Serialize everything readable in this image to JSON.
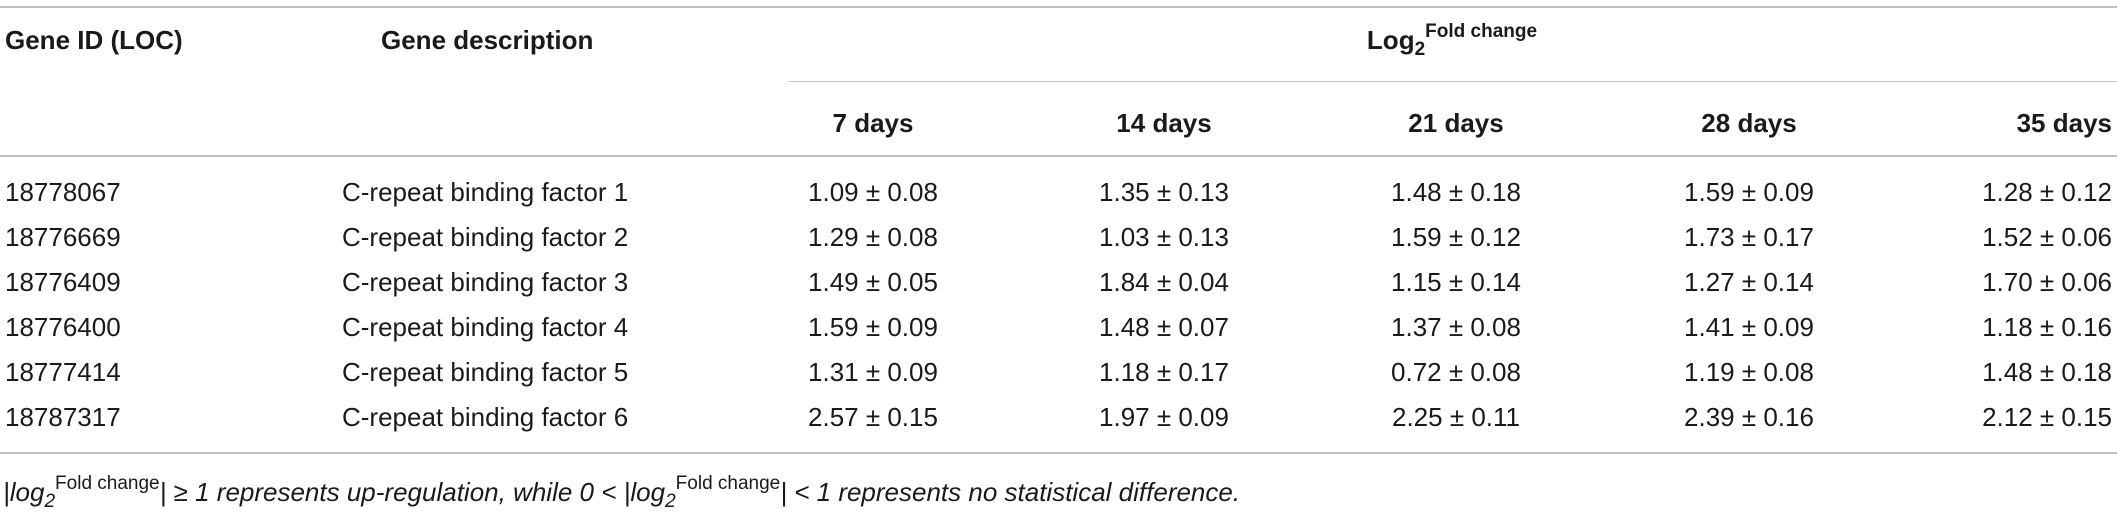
{
  "table": {
    "headers": {
      "gene_id": "Gene ID (LOC)",
      "description": "Gene description",
      "log_base": "Log",
      "log_sub": "2",
      "log_sup": "Fold change",
      "days": [
        "7 days",
        "14 days",
        "21 days",
        "28 days",
        "35 days"
      ]
    },
    "rows": [
      {
        "id": "18778067",
        "desc": "C-repeat binding factor 1",
        "vals": [
          "1.09 ± 0.08",
          "1.35 ± 0.13",
          "1.48 ± 0.18",
          "1.59 ± 0.09",
          "1.28 ± 0.12"
        ]
      },
      {
        "id": "18776669",
        "desc": "C-repeat binding factor 2",
        "vals": [
          "1.29 ± 0.08",
          "1.03 ± 0.13",
          "1.59 ± 0.12",
          "1.73 ± 0.17",
          "1.52 ± 0.06"
        ]
      },
      {
        "id": "18776409",
        "desc": "C-repeat binding factor 3",
        "vals": [
          "1.49 ± 0.05",
          "1.84 ± 0.04",
          "1.15 ± 0.14",
          "1.27 ± 0.14",
          "1.70 ± 0.06"
        ]
      },
      {
        "id": "18776400",
        "desc": "C-repeat binding factor 4",
        "vals": [
          "1.59 ± 0.09",
          "1.48 ± 0.07",
          "1.37 ± 0.08",
          "1.41 ± 0.09",
          "1.18 ± 0.16"
        ]
      },
      {
        "id": "18777414",
        "desc": "C-repeat binding factor 5",
        "vals": [
          "1.31 ± 0.09",
          "1.18 ± 0.17",
          "0.72 ± 0.08",
          "1.19 ± 0.08",
          "1.48 ± 0.18"
        ]
      },
      {
        "id": "18787317",
        "desc": "C-repeat binding factor 6",
        "vals": [
          "2.57 ± 0.15",
          "1.97 ± 0.09",
          "2.25 ± 0.11",
          "2.39 ± 0.16",
          "2.12 ± 0.15"
        ]
      }
    ]
  },
  "footnote": {
    "bar_open": "|",
    "log": "log",
    "sub": "2",
    "sup": "Fold change",
    "part1": "| ≥ 1 represents up-regulation, while 0 < |",
    "part2": "| < 1 represents no statistical difference."
  }
}
